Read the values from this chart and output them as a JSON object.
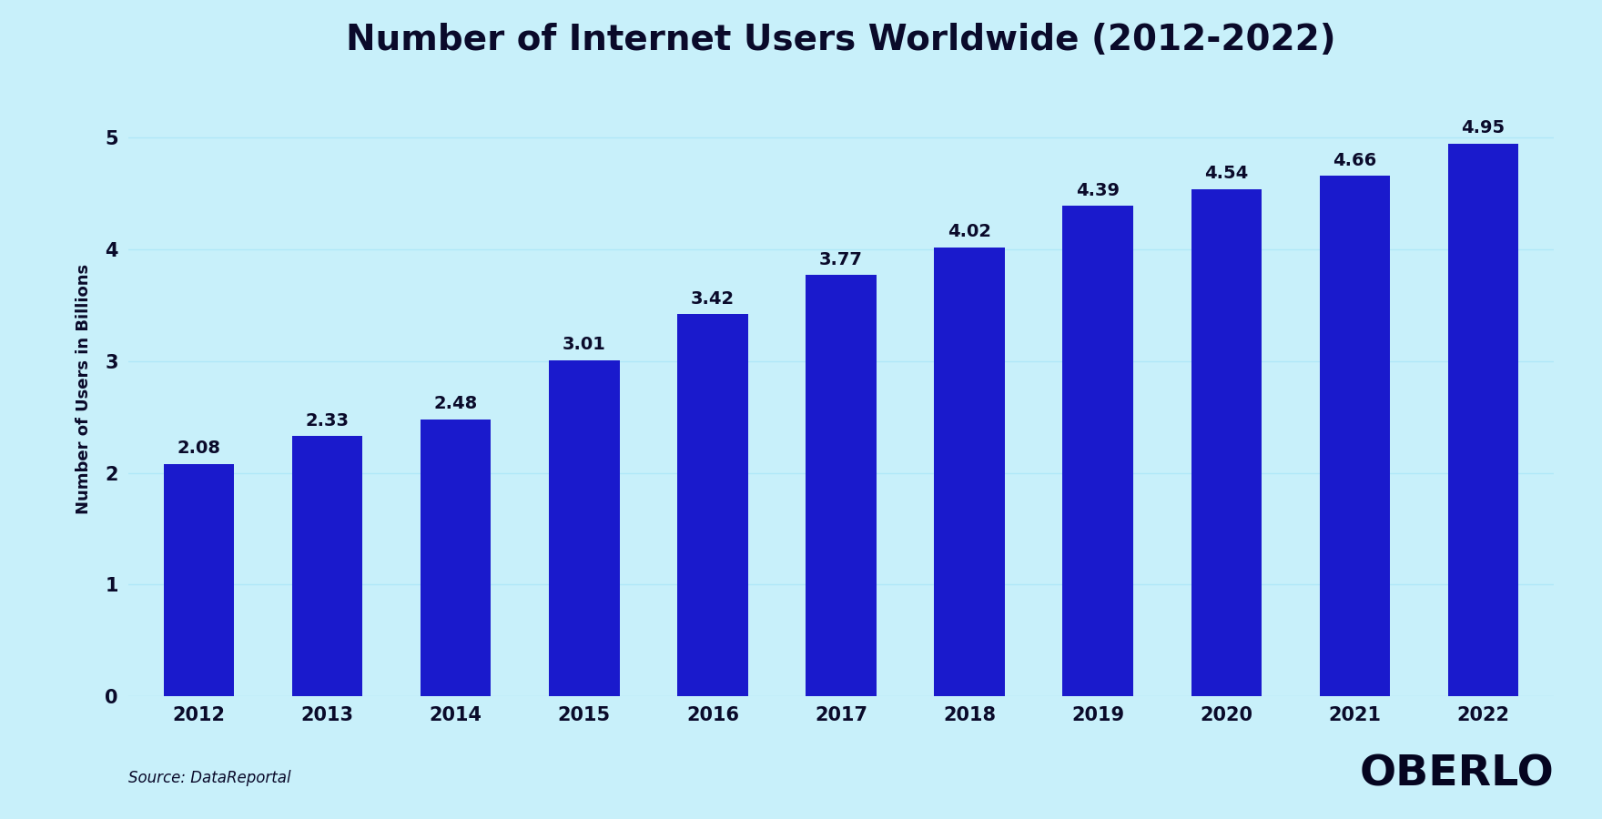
{
  "title": "Number of Internet Users Worldwide (2012-2022)",
  "ylabel": "Number of Users in Billions",
  "source_text": "Source: DataReportal",
  "oberlo_text": "OBERLO",
  "years": [
    2012,
    2013,
    2014,
    2015,
    2016,
    2017,
    2018,
    2019,
    2020,
    2021,
    2022
  ],
  "values": [
    2.08,
    2.33,
    2.48,
    3.01,
    3.42,
    3.77,
    4.02,
    4.39,
    4.54,
    4.66,
    4.95
  ],
  "bar_color": "#1a1acc",
  "background_color": "#c8f0fa",
  "title_color": "#0a0a2a",
  "label_color": "#0a0a2a",
  "tick_color": "#0a0a2a",
  "grid_color": "#b0e8f8",
  "ylim": [
    0,
    5.5
  ],
  "yticks": [
    0,
    1,
    2,
    3,
    4,
    5
  ],
  "title_fontsize": 28,
  "ylabel_fontsize": 13,
  "bar_label_fontsize": 14,
  "tick_fontsize": 15,
  "source_fontsize": 12,
  "oberlo_fontsize": 34
}
